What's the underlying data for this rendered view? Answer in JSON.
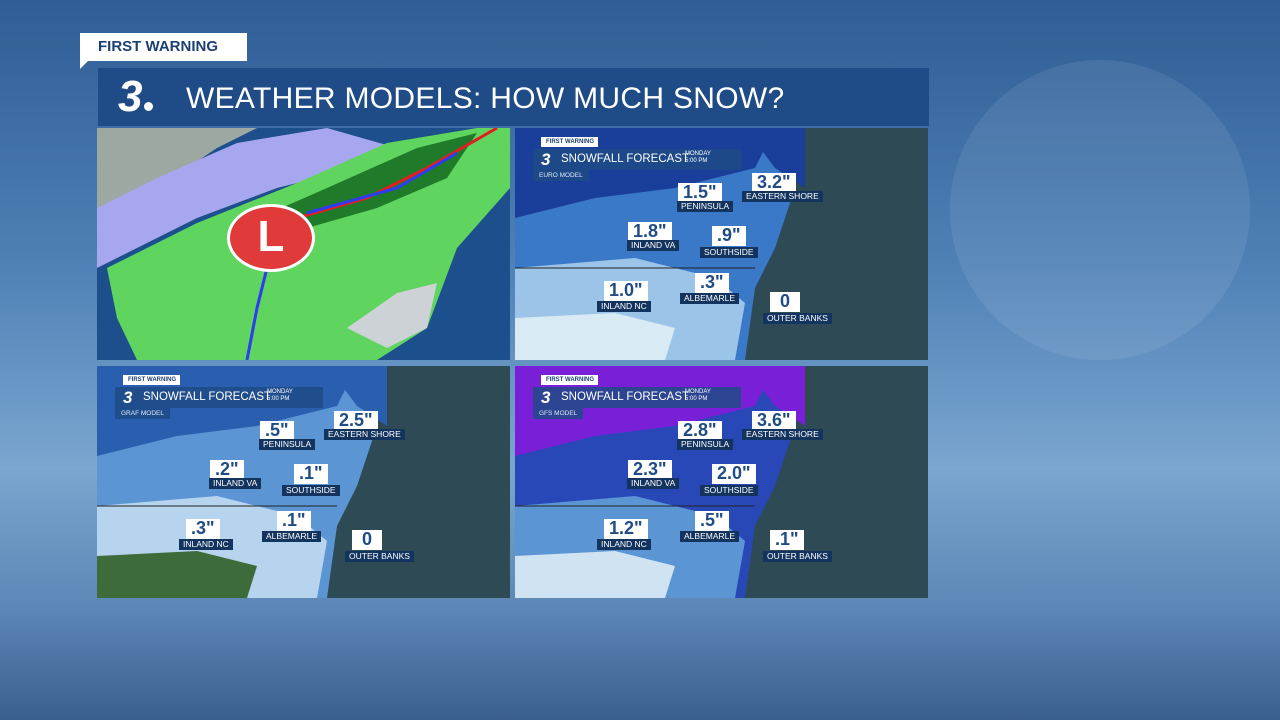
{
  "header": {
    "badge": "FIRST WARNING",
    "station_logo": "3",
    "title": "WEATHER MODELS: HOW MUCH SNOW?"
  },
  "storm_map": {
    "low_symbol": "L",
    "colors": {
      "low": "#e03a3a",
      "rain": "#5fd45f",
      "snow": "#8d8de8",
      "cold_front": "#2f3cf0",
      "warm_front": "#e02020"
    }
  },
  "forecast_panels": [
    {
      "badge": "FIRST WARNING",
      "logo": "3",
      "title": "SNOWFALL FORECAST",
      "day": "MONDAY\n5:00 PM",
      "model": "EURO MODEL",
      "regions": [
        {
          "value": "1.5\"",
          "name": "PENINSULA"
        },
        {
          "value": "3.2\"",
          "name": "EASTERN SHORE"
        },
        {
          "value": "1.8\"",
          "name": "INLAND VA"
        },
        {
          "value": ".9\"",
          "name": "SOUTHSIDE"
        },
        {
          "value": "1.0\"",
          "name": "INLAND NC"
        },
        {
          "value": ".3\"",
          "name": "ALBEMARLE"
        },
        {
          "value": "0",
          "name": "OUTER BANKS"
        }
      ]
    },
    {
      "badge": "FIRST WARNING",
      "logo": "3",
      "title": "SNOWFALL FORECAST",
      "day": "MONDAY\n5:00 PM",
      "model": "GRAF MODEL",
      "regions": [
        {
          "value": ".5\"",
          "name": "PENINSULA"
        },
        {
          "value": "2.5\"",
          "name": "EASTERN SHORE"
        },
        {
          "value": ".2\"",
          "name": "INLAND VA"
        },
        {
          "value": ".1\"",
          "name": "SOUTHSIDE"
        },
        {
          "value": ".3\"",
          "name": "INLAND NC"
        },
        {
          "value": ".1\"",
          "name": "ALBEMARLE"
        },
        {
          "value": "0",
          "name": "OUTER BANKS"
        }
      ]
    },
    {
      "badge": "FIRST WARNING",
      "logo": "3",
      "title": "SNOWFALL FORECAST",
      "day": "MONDAY\n5:00 PM",
      "model": "GFS MODEL",
      "regions": [
        {
          "value": "2.8\"",
          "name": "PENINSULA"
        },
        {
          "value": "3.6\"",
          "name": "EASTERN SHORE"
        },
        {
          "value": "2.3\"",
          "name": "INLAND VA"
        },
        {
          "value": "2.0\"",
          "name": "SOUTHSIDE"
        },
        {
          "value": "1.2\"",
          "name": "INLAND NC"
        },
        {
          "value": ".5\"",
          "name": "ALBEMARLE"
        },
        {
          "value": ".1\"",
          "name": "OUTER BANKS"
        }
      ]
    }
  ]
}
